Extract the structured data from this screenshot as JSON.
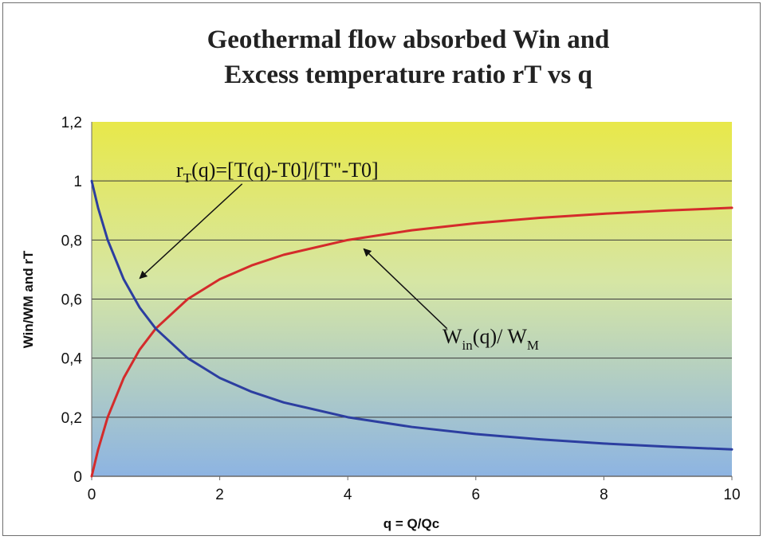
{
  "chart_data": {
    "type": "line",
    "title": [
      "Geothermal flow absorbed Win and",
      "Excess temperature ratio rT vs q"
    ],
    "xlabel": "q = Q/Qc",
    "ylabel": "Win/WM and rT",
    "xlim": [
      0,
      10
    ],
    "ylim": [
      0,
      1.2
    ],
    "x_ticks": [
      "0",
      "2",
      "4",
      "6",
      "8",
      "10"
    ],
    "y_ticks": [
      "0",
      "0,2",
      "0,4",
      "0,6",
      "0,8",
      "1",
      "1,2"
    ],
    "grid": "horizontal",
    "background_gradient": [
      "#e8e84a",
      "#8db4e2"
    ],
    "series": [
      {
        "color": "#d42b2b",
        "x": [
          0,
          0.1,
          0.25,
          0.5,
          0.75,
          1,
          1.5,
          2,
          2.5,
          3,
          4,
          5,
          6,
          7,
          8,
          9,
          10
        ],
        "y": [
          0,
          0.09,
          0.2,
          0.333,
          0.429,
          0.5,
          0.6,
          0.667,
          0.714,
          0.75,
          0.8,
          0.833,
          0.857,
          0.875,
          0.889,
          0.9,
          0.909
        ]
      },
      {
        "color": "#2c3ea0",
        "x": [
          0,
          0.1,
          0.25,
          0.5,
          0.75,
          1,
          1.5,
          2,
          2.5,
          3,
          4,
          5,
          6,
          7,
          8,
          9,
          10
        ],
        "y": [
          1,
          0.909,
          0.8,
          0.667,
          0.571,
          0.5,
          0.4,
          0.333,
          0.286,
          0.25,
          0.2,
          0.167,
          0.143,
          0.125,
          0.111,
          0.1,
          0.091
        ]
      }
    ],
    "annotations": [
      {
        "id": "rt",
        "label_main": "r",
        "label_sub": "T",
        "label_tail": "(q)=[T(q)-T0]/[T\"-T0]",
        "arrow_from": [
          2.35,
          0.99
        ],
        "arrow_to": [
          0.75,
          0.67
        ]
      },
      {
        "id": "win",
        "label_main": "W",
        "label_sub": "in",
        "label_tail": "(q)/ W",
        "label_sub2": "M",
        "arrow_from": [
          5.55,
          0.5
        ],
        "arrow_to": [
          4.25,
          0.77
        ]
      }
    ]
  }
}
